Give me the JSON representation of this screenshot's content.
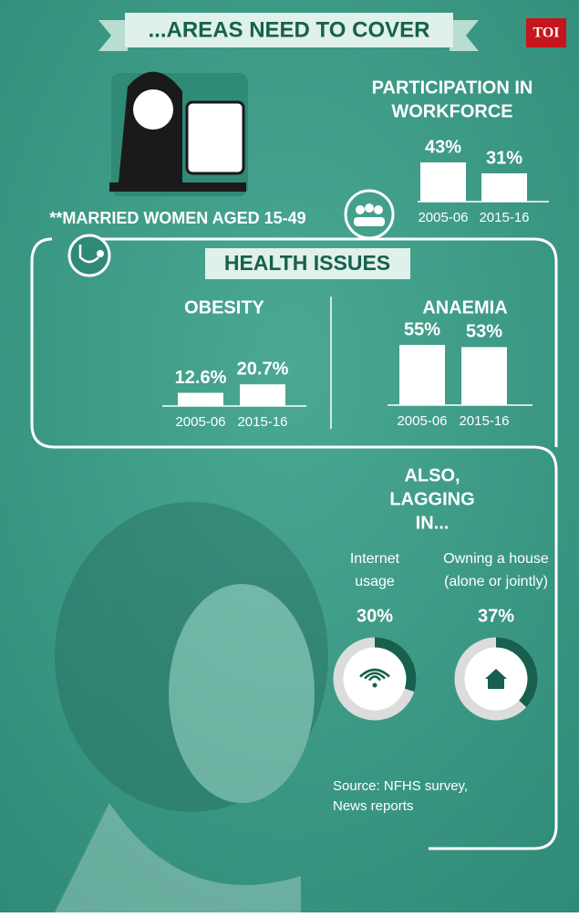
{
  "title": "...AREAS NEED TO COVER",
  "logo": "TOI",
  "note": "**MARRIED WOMEN AGED 15-49",
  "section_title": "HEALTH ISSUES",
  "source": [
    "Source: NFHS survey,",
    "News reports"
  ],
  "chart_data": [
    {
      "type": "bar",
      "title": [
        "PARTICIPATION IN",
        "WORKFORCE"
      ],
      "categories": [
        "2005-06",
        "2015-16"
      ],
      "values": [
        43,
        31
      ],
      "value_labels": [
        "43%",
        "31%"
      ],
      "color": "#ffffff"
    },
    {
      "type": "bar",
      "title": [
        "OBESITY"
      ],
      "categories": [
        "2005-06",
        "2015-16"
      ],
      "values": [
        12.6,
        20.7
      ],
      "value_labels": [
        "12.6%",
        "20.7%"
      ],
      "color": "#ffffff"
    },
    {
      "type": "bar",
      "title": [
        "ANAEMIA"
      ],
      "categories": [
        "2005-06",
        "2015-16"
      ],
      "values": [
        55,
        53
      ],
      "value_labels": [
        "55%",
        "53%"
      ],
      "color": "#ffffff"
    },
    {
      "type": "donut",
      "title": [
        "ALSO,",
        "LAGGING",
        "IN..."
      ],
      "categories": [
        [
          "Internet",
          "usage"
        ],
        [
          "Owning a house",
          "(alone or jointly)"
        ]
      ],
      "values": [
        30,
        37
      ],
      "value_labels": [
        "30%",
        "37%"
      ],
      "color": "#17604d",
      "track_color": "#dcdcdc"
    }
  ]
}
